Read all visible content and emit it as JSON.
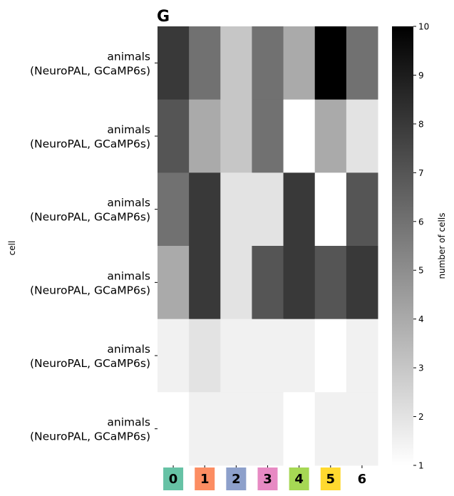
{
  "chart_data": {
    "type": "heatmap",
    "title": "G",
    "ylabel": "cell",
    "colorbar_label": "number of cells",
    "row_labels": [
      [
        "animals",
        "(NeuroPAL, GCaMP6s)"
      ],
      [
        "animals",
        "(NeuroPAL, GCaMP6s)"
      ],
      [
        "animals",
        "(NeuroPAL, GCaMP6s)"
      ],
      [
        "animals",
        "(NeuroPAL, GCaMP6s)"
      ],
      [
        "animals",
        "(NeuroPAL, GCaMP6s)"
      ],
      [
        "animals",
        "(NeuroPAL, GCaMP6s)"
      ]
    ],
    "columns": [
      {
        "label": "0",
        "color": "#66c2a5"
      },
      {
        "label": "1",
        "color": "#fc8d62"
      },
      {
        "label": "2",
        "color": "#8da0cb"
      },
      {
        "label": "3",
        "color": "#e78ac3"
      },
      {
        "label": "4",
        "color": "#a6d854"
      },
      {
        "label": "5",
        "color": "#ffd92f"
      },
      {
        "label": "6",
        "color": "none"
      }
    ],
    "values": [
      [
        8,
        6,
        3,
        6,
        4,
        10,
        6
      ],
      [
        7,
        4,
        3,
        6,
        1,
        4,
        2
      ],
      [
        6,
        8,
        2,
        2,
        8,
        1,
        7
      ],
      [
        4,
        8,
        2,
        7,
        8,
        7,
        8
      ],
      [
        1.5,
        2,
        1.5,
        1.5,
        1.5,
        1,
        1.5
      ],
      [
        1,
        1.5,
        1.5,
        1.5,
        1,
        1.5,
        1.5
      ]
    ],
    "vmin": 1,
    "vmax": 10,
    "colormap": "greys",
    "colorbar_ticks": [
      "1",
      "2",
      "3",
      "4",
      "5",
      "6",
      "7",
      "8",
      "9",
      "10"
    ]
  }
}
